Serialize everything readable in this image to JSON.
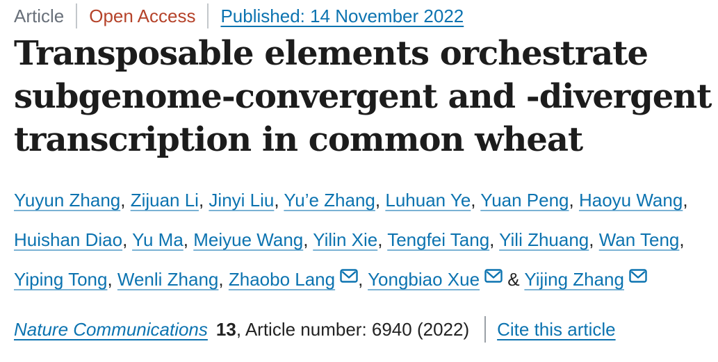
{
  "colors": {
    "link_blue": "#0c73b0",
    "open_access": "#b5432a",
    "muted_label": "#69707a",
    "text_dark": "#222222",
    "title_ink": "#1c1c1c",
    "separator": "#c3c7cb",
    "citation_bar": "#9aa0a6"
  },
  "meta_bar": {
    "article_type": "Article",
    "access_label": "Open Access",
    "published_link": "Published: 14 November 2022"
  },
  "title": {
    "full": "Transposable elements orchestrate subgenome-convergent and -divergent transcription in common wheat",
    "lines": [
      "Transposable elements orchestrate",
      "subgenome-convergent and -divergent",
      "transcription in common wheat"
    ]
  },
  "authors": {
    "conjunction": "&",
    "email_icon": "envelope-icon",
    "list": [
      {
        "name": "Yuyun Zhang",
        "email": false
      },
      {
        "name": "Zijuan Li",
        "email": false
      },
      {
        "name": "Jinyi Liu",
        "email": false
      },
      {
        "name": "Yu’e Zhang",
        "email": false
      },
      {
        "name": "Luhuan Ye",
        "email": false
      },
      {
        "name": "Yuan Peng",
        "email": false
      },
      {
        "name": "Haoyu Wang",
        "email": false,
        "break_after": true
      },
      {
        "name": "Huishan Diao",
        "email": false
      },
      {
        "name": "Yu Ma",
        "email": false
      },
      {
        "name": "Meiyue Wang",
        "email": false
      },
      {
        "name": "Yilin Xie",
        "email": false
      },
      {
        "name": "Tengfei Tang",
        "email": false
      },
      {
        "name": "Yili Zhuang",
        "email": false
      },
      {
        "name": "Wan Teng",
        "email": false,
        "break_after": true
      },
      {
        "name": "Yiping Tong",
        "email": false
      },
      {
        "name": "Wenli Zhang",
        "email": false
      },
      {
        "name": "Zhaobo Lang",
        "email": true
      },
      {
        "name": "Yongbiao Xue",
        "email": true
      },
      {
        "name": "Yijing Zhang",
        "email": true
      }
    ]
  },
  "citation": {
    "journal": "Nature Communications",
    "volume": "13",
    "article_info": ", Article number: 6940 (2022)",
    "cite_link": "Cite this article"
  }
}
